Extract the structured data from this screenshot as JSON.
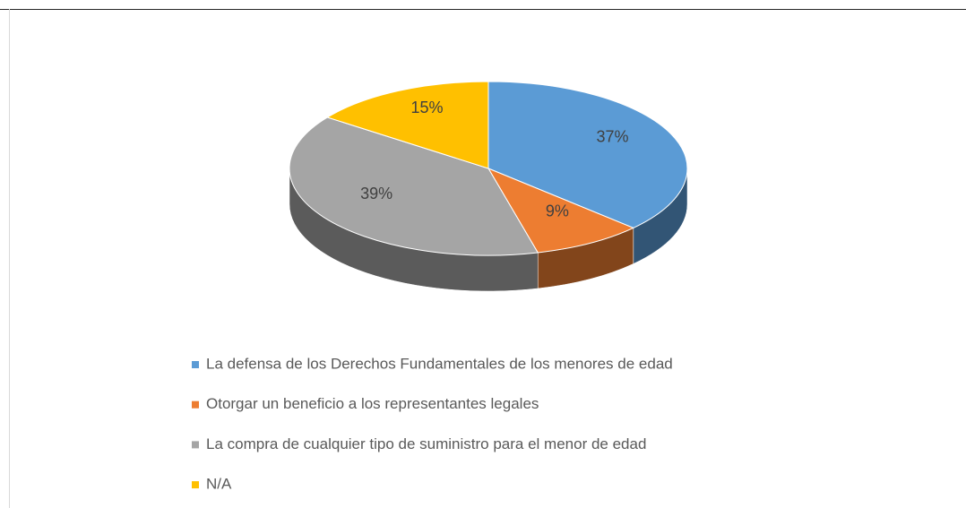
{
  "chart_data": {
    "type": "pie",
    "categories": [
      "La defensa de los Derechos Fundamentales de los menores de edad",
      "Otorgar un beneficio a los representantes legales",
      "La compra de cualquier tipo de suministro para el menor de edad",
      "N/A"
    ],
    "values": [
      37,
      9,
      39,
      15
    ],
    "value_labels": [
      "37%",
      "9%",
      "39%",
      "15%"
    ],
    "colors": [
      "#5b9bd5",
      "#ed7d31",
      "#a5a5a5",
      "#ffc000"
    ],
    "legend": "bottom"
  }
}
